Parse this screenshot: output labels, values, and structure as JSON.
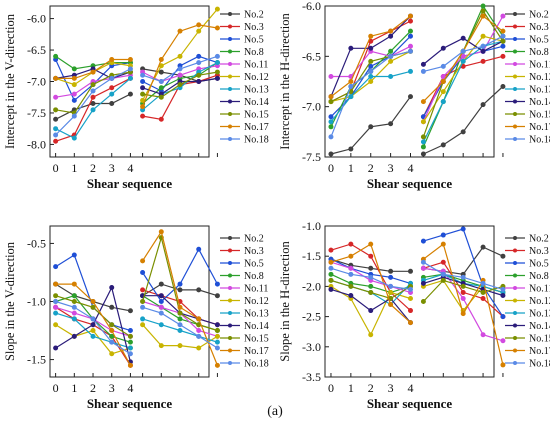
{
  "figure_label": "(a)",
  "legend_names": [
    "No.2",
    "No.3",
    "No.5",
    "No.8",
    "No.11",
    "No.12",
    "No.13",
    "No.14",
    "No.15",
    "No.17",
    "No.18"
  ],
  "colors": [
    "#404040",
    "#d62728",
    "#1f4fd6",
    "#2ca02c",
    "#d24ae0",
    "#c8b400",
    "#17a2c8",
    "#2b1c7a",
    "#7a8f00",
    "#d68000",
    "#5a8ae6"
  ],
  "chart_data": [
    {
      "type": "line",
      "ylabel": "Intercept in the V-direction",
      "xlabel": "Shear sequence",
      "x": [
        0,
        1,
        2,
        3,
        4
      ],
      "ylim": [
        -8.2,
        -5.8
      ],
      "yticks": [
        -8.0,
        -7.5,
        -7.0,
        -6.5,
        -6.0
      ],
      "ytick_labels": [
        "-8.0",
        "-7.5",
        "-7.0",
        "-6.5",
        "-6.0"
      ],
      "xtick_labels": [
        "0",
        "1",
        "2",
        "3",
        "4"
      ],
      "groups": 2,
      "series": [
        {
          "name": "No.2",
          "values": [
            [
              -7.6,
              -7.45,
              -7.35,
              -7.35,
              -7.2
            ],
            [
              -6.8,
              -6.85,
              -6.9,
              -7.0,
              -6.95
            ]
          ]
        },
        {
          "name": "No.3",
          "values": [
            [
              -7.95,
              -7.85,
              -7.25,
              -7.1,
              -6.95
            ],
            [
              -7.55,
              -7.6,
              -7.05,
              -7.0,
              -6.9
            ]
          ]
        },
        {
          "name": "No.5",
          "values": [
            [
              -6.65,
              -7.3,
              -7.05,
              -6.75,
              -6.7
            ],
            [
              -7.0,
              -7.15,
              -6.75,
              -6.6,
              -6.7
            ]
          ]
        },
        {
          "name": "No.8",
          "values": [
            [
              -6.6,
              -6.8,
              -6.75,
              -6.7,
              -6.7
            ],
            [
              -7.35,
              -7.1,
              -6.95,
              -6.9,
              -6.7
            ]
          ]
        },
        {
          "name": "No.11",
          "values": [
            [
              -7.25,
              -7.2,
              -7.0,
              -6.95,
              -6.9
            ],
            [
              -6.85,
              -7.0,
              -6.9,
              -6.8,
              -6.75
            ]
          ]
        },
        {
          "name": "No.12",
          "values": [
            [
              -6.95,
              -7.05,
              -6.85,
              -6.7,
              -6.75
            ],
            [
              -7.3,
              -6.75,
              -6.6,
              -6.2,
              -5.85
            ]
          ]
        },
        {
          "name": "No.13",
          "values": [
            [
              -7.75,
              -7.9,
              -7.45,
              -7.2,
              -6.95
            ],
            [
              -7.45,
              -7.2,
              -7.1,
              -6.85,
              -6.7
            ]
          ]
        },
        {
          "name": "No.14",
          "values": [
            [
              -6.95,
              -6.9,
              -6.8,
              -6.95,
              -6.85
            ],
            [
              -7.1,
              -7.2,
              -7.0,
              -7.0,
              -6.95
            ]
          ]
        },
        {
          "name": "No.15",
          "values": [
            [
              -7.45,
              -7.5,
              -7.05,
              -6.9,
              -6.85
            ],
            [
              -7.2,
              -7.25,
              -7.05,
              -6.9,
              -6.85
            ]
          ]
        },
        {
          "name": "No.17",
          "values": [
            [
              -6.95,
              -6.95,
              -6.85,
              -6.65,
              -6.65
            ],
            [
              -7.4,
              -6.65,
              -6.2,
              -6.1,
              -6.15
            ]
          ]
        },
        {
          "name": "No.18",
          "values": [
            [
              -7.85,
              -7.55,
              -7.15,
              -6.95,
              -6.8
            ],
            [
              -6.9,
              -7.0,
              -6.8,
              -6.7,
              -6.6
            ]
          ]
        }
      ]
    },
    {
      "type": "line",
      "ylabel": "Intercept in the H-direction",
      "xlabel": "Shear sequence",
      "x": [
        0,
        1,
        2,
        3,
        4
      ],
      "ylim": [
        -7.5,
        -6.0
      ],
      "yticks": [
        -7.5,
        -7.0,
        -6.5,
        -6.0
      ],
      "ytick_labels": [
        "-7.5",
        "-7.0",
        "-6.5",
        "-6.0"
      ],
      "xtick_labels": [
        "0",
        "1",
        "2",
        "3",
        "4"
      ],
      "groups": 2,
      "series": [
        {
          "name": "No.2",
          "values": [
            [
              -7.47,
              -7.42,
              -7.2,
              -7.17,
              -6.9
            ],
            [
              -7.47,
              -7.38,
              -7.25,
              -6.98,
              -6.8
            ]
          ]
        },
        {
          "name": "No.3",
          "values": [
            [
              -6.95,
              -6.85,
              -6.35,
              -6.25,
              -6.15
            ],
            [
              -7.1,
              -6.7,
              -6.6,
              -6.55,
              -6.5
            ]
          ]
        },
        {
          "name": "No.5",
          "values": [
            [
              -7.1,
              -6.9,
              -6.6,
              -6.5,
              -6.3
            ],
            [
              -7.1,
              -6.75,
              -6.5,
              -6.45,
              -6.4
            ]
          ]
        },
        {
          "name": "No.8",
          "values": [
            [
              -7.2,
              -6.8,
              -6.65,
              -6.45,
              -6.25
            ],
            [
              -7.4,
              -6.95,
              -6.45,
              -6.0,
              -6.3
            ]
          ]
        },
        {
          "name": "No.11",
          "values": [
            [
              -6.7,
              -6.7,
              -6.45,
              -6.5,
              -6.4
            ],
            [
              -7.15,
              -6.7,
              -6.5,
              -6.45,
              -6.1
            ]
          ]
        },
        {
          "name": "No.12",
          "values": [
            [
              -6.95,
              -6.9,
              -6.75,
              -6.55,
              -6.45
            ],
            [
              -7.15,
              -6.85,
              -6.55,
              -6.3,
              -6.35
            ]
          ]
        },
        {
          "name": "No.13",
          "values": [
            [
              -7.15,
              -6.9,
              -6.7,
              -6.7,
              -6.65
            ],
            [
              -7.35,
              -6.95,
              -6.55,
              -6.4,
              -6.35
            ]
          ]
        },
        {
          "name": "No.14",
          "values": [
            [
              -6.9,
              -6.42,
              -6.42,
              -6.3,
              -6.1
            ],
            [
              -6.58,
              -6.42,
              -6.32,
              -6.45,
              -6.35
            ]
          ]
        },
        {
          "name": "No.15",
          "values": [
            [
              -6.95,
              -6.85,
              -6.55,
              -6.5,
              -6.45
            ],
            [
              -7.3,
              -6.75,
              -6.45,
              -6.05,
              -6.35
            ]
          ]
        },
        {
          "name": "No.17",
          "values": [
            [
              -6.9,
              -6.75,
              -6.3,
              -6.25,
              -6.1
            ],
            [
              -6.95,
              -6.75,
              -6.45,
              -6.1,
              -6.25
            ]
          ]
        },
        {
          "name": "No.18",
          "values": [
            [
              -7.3,
              -6.8,
              -6.65,
              -6.5,
              -6.45
            ],
            [
              -6.65,
              -6.6,
              -6.45,
              -6.4,
              -6.3
            ]
          ]
        }
      ]
    },
    {
      "type": "line",
      "ylabel": "Slope in the V-direction",
      "xlabel": "Shear sequence",
      "x": [
        0,
        1,
        2,
        3,
        4
      ],
      "ylim": [
        -1.65,
        -0.35
      ],
      "yticks": [
        -1.5,
        -1.0,
        -0.5
      ],
      "ytick_labels": [
        "-1.5",
        "-1.0",
        "-0.5"
      ],
      "xtick_labels": [
        "0",
        "1",
        "2",
        "3",
        "4"
      ],
      "groups": 2,
      "series": [
        {
          "name": "No.2",
          "values": [
            [
              -0.85,
              -0.95,
              -1.0,
              -1.05,
              -1.08
            ],
            [
              -0.95,
              -0.85,
              -0.9,
              -0.9,
              -0.95
            ]
          ]
        },
        {
          "name": "No.3",
          "values": [
            [
              -1.05,
              -1.15,
              -1.2,
              -1.3,
              -1.55
            ],
            [
              -0.9,
              -0.95,
              -1.0,
              -1.15,
              -1.2
            ]
          ]
        },
        {
          "name": "No.5",
          "values": [
            [
              -0.7,
              -0.6,
              -1.05,
              -1.2,
              -1.25
            ],
            [
              -0.75,
              -1.0,
              -0.85,
              -0.55,
              -0.85
            ]
          ]
        },
        {
          "name": "No.8",
          "values": [
            [
              -1.0,
              -0.95,
              -1.15,
              -1.3,
              -1.35
            ],
            [
              -0.95,
              -1.05,
              -1.15,
              -1.2,
              -1.25
            ]
          ]
        },
        {
          "name": "No.11",
          "values": [
            [
              -1.05,
              -1.1,
              -1.15,
              -1.25,
              -1.3
            ],
            [
              -1.0,
              -1.05,
              -1.1,
              -1.25,
              -1.3
            ]
          ]
        },
        {
          "name": "No.12",
          "values": [
            [
              -1.2,
              -1.3,
              -1.25,
              -1.45,
              -1.4
            ],
            [
              -1.2,
              -1.38,
              -1.38,
              -1.4,
              -1.3
            ]
          ]
        },
        {
          "name": "No.13",
          "values": [
            [
              -1.1,
              -1.15,
              -1.3,
              -1.35,
              -1.4
            ],
            [
              -1.15,
              -1.2,
              -1.25,
              -1.3,
              -1.35
            ]
          ]
        },
        {
          "name": "No.14",
          "values": [
            [
              -1.4,
              -1.3,
              -1.2,
              -0.88,
              -1.52
            ],
            [
              -0.95,
              -0.95,
              -1.1,
              -1.15,
              -1.2
            ]
          ]
        },
        {
          "name": "No.15",
          "values": [
            [
              -0.95,
              -1.0,
              -1.05,
              -1.2,
              -1.3
            ],
            [
              -1.0,
              -0.45,
              -1.1,
              -1.2,
              -1.25
            ]
          ]
        },
        {
          "name": "No.17",
          "values": [
            [
              -0.85,
              -0.85,
              -1.0,
              -1.25,
              -1.55
            ],
            [
              -0.65,
              -0.4,
              -1.05,
              -1.15,
              -1.55
            ]
          ]
        },
        {
          "name": "No.18",
          "values": [
            [
              -1.0,
              -1.05,
              -1.15,
              -1.35,
              -1.45
            ],
            [
              -1.05,
              -1.1,
              -1.2,
              -1.3,
              -1.4
            ]
          ]
        }
      ]
    },
    {
      "type": "line",
      "ylabel": "Slope in the H-direction",
      "xlabel": "Shear sequence",
      "x": [
        0,
        1,
        2,
        3,
        4
      ],
      "ylim": [
        -3.5,
        -1.0
      ],
      "yticks": [
        -3.5,
        -3.0,
        -2.5,
        -2.0,
        -1.5,
        -1.0
      ],
      "ytick_labels": [
        "-3.5",
        "-3.0",
        "-2.5",
        "-2.0",
        "-1.5",
        "-1.0"
      ],
      "xtick_labels": [
        "0",
        "1",
        "2",
        "3",
        "4"
      ],
      "groups": 2,
      "series": [
        {
          "name": "No.2",
          "values": [
            [
              -1.55,
              -1.65,
              -1.7,
              -1.75,
              -1.75
            ],
            [
              -1.7,
              -1.75,
              -1.8,
              -1.35,
              -1.5
            ]
          ]
        },
        {
          "name": "No.3",
          "values": [
            [
              -1.4,
              -1.3,
              -1.5,
              -2.1,
              -2.4
            ],
            [
              -1.7,
              -1.6,
              -2.1,
              -2.2,
              -2.5
            ]
          ]
        },
        {
          "name": "No.5",
          "values": [
            [
              -1.55,
              -1.7,
              -1.8,
              -1.85,
              -1.95
            ],
            [
              -1.25,
              -1.15,
              -1.05,
              -2.0,
              -2.5
            ]
          ]
        },
        {
          "name": "No.8",
          "values": [
            [
              -1.8,
              -1.95,
              -2.0,
              -2.1,
              -2.0
            ],
            [
              -1.85,
              -1.8,
              -1.9,
              -2.0,
              -2.1
            ]
          ]
        },
        {
          "name": "No.11",
          "values": [
            [
              -1.6,
              -1.7,
              -1.9,
              -2.0,
              -2.1
            ],
            [
              -1.7,
              -1.75,
              -2.2,
              -2.8,
              -2.9
            ]
          ]
        },
        {
          "name": "No.12",
          "values": [
            [
              -2.0,
              -2.2,
              -2.8,
              -2.1,
              -2.2
            ],
            [
              -2.0,
              -1.9,
              -2.4,
              -2.0,
              -2.1
            ]
          ]
        },
        {
          "name": "No.13",
          "values": [
            [
              -1.9,
              -2.0,
              -2.1,
              -2.3,
              -1.95
            ],
            [
              -1.9,
              -1.8,
              -1.95,
              -2.0,
              -2.1
            ]
          ]
        },
        {
          "name": "No.14",
          "values": [
            [
              -2.05,
              -2.15,
              -2.4,
              -2.2,
              -2.6
            ],
            [
              -1.95,
              -1.85,
              -1.95,
              -2.05,
              -2.15
            ]
          ]
        },
        {
          "name": "No.15",
          "values": [
            [
              -1.9,
              -2.0,
              -2.1,
              -2.2,
              -2.0
            ],
            [
              -2.25,
              -1.9,
              -2.0,
              -2.1,
              -2.0
            ]
          ]
        },
        {
          "name": "No.17",
          "values": [
            [
              -1.6,
              -1.5,
              -1.3,
              -2.3,
              -2.6
            ],
            [
              -1.55,
              -1.3,
              -2.45,
              -1.9,
              -3.3
            ]
          ]
        },
        {
          "name": "No.18",
          "values": [
            [
              -1.7,
              -1.8,
              -1.85,
              -2.0,
              -2.05
            ],
            [
              -1.6,
              -1.8,
              -1.85,
              -1.95,
              -2.05
            ]
          ]
        }
      ]
    }
  ]
}
